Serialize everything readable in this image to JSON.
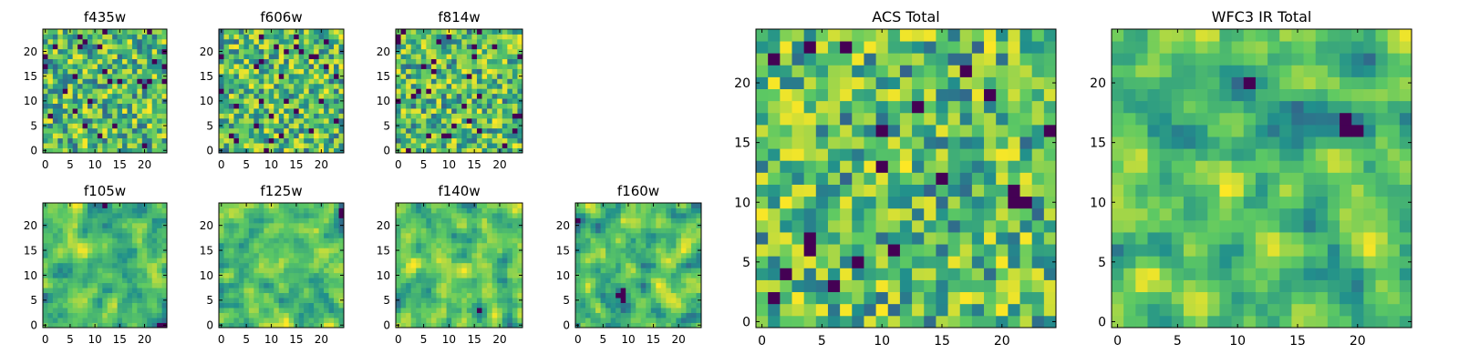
{
  "figure": {
    "colormap": "viridis",
    "grid_size": 25,
    "colormap_stops": [
      "#440154",
      "#3b528b",
      "#21908c",
      "#5dc963",
      "#fde725"
    ]
  },
  "chart_data": [
    {
      "type": "heatmap",
      "title": "f435w",
      "xticks": [
        "0",
        "5",
        "10",
        "15",
        "20"
      ],
      "yticks": [
        "0",
        "5",
        "10",
        "15",
        "20"
      ],
      "xlim": [
        -0.5,
        24.5
      ],
      "ylim": [
        -0.5,
        24.5
      ],
      "grid": false
    },
    {
      "type": "heatmap",
      "title": "f606w",
      "xticks": [
        "0",
        "5",
        "10",
        "15",
        "20"
      ],
      "yticks": [
        "0",
        "5",
        "10",
        "15",
        "20"
      ],
      "xlim": [
        -0.5,
        24.5
      ],
      "ylim": [
        -0.5,
        24.5
      ],
      "grid": false
    },
    {
      "type": "heatmap",
      "title": "f814w",
      "xticks": [
        "0",
        "5",
        "10",
        "15",
        "20"
      ],
      "yticks": [
        "0",
        "5",
        "10",
        "15",
        "20"
      ],
      "xlim": [
        -0.5,
        24.5
      ],
      "ylim": [
        -0.5,
        24.5
      ],
      "grid": false
    },
    {
      "type": "heatmap",
      "title": "f105w",
      "xticks": [
        "0",
        "5",
        "10",
        "15",
        "20"
      ],
      "yticks": [
        "0",
        "5",
        "10",
        "15",
        "20"
      ],
      "xlim": [
        -0.5,
        24.5
      ],
      "ylim": [
        -0.5,
        24.5
      ],
      "grid": false
    },
    {
      "type": "heatmap",
      "title": "f125w",
      "xticks": [
        "0",
        "5",
        "10",
        "15",
        "20"
      ],
      "yticks": [
        "0",
        "5",
        "10",
        "15",
        "20"
      ],
      "xlim": [
        -0.5,
        24.5
      ],
      "ylim": [
        -0.5,
        24.5
      ],
      "grid": false
    },
    {
      "type": "heatmap",
      "title": "f140w",
      "xticks": [
        "0",
        "5",
        "10",
        "15",
        "20"
      ],
      "yticks": [
        "0",
        "5",
        "10",
        "15",
        "20"
      ],
      "xlim": [
        -0.5,
        24.5
      ],
      "ylim": [
        -0.5,
        24.5
      ],
      "grid": false
    },
    {
      "type": "heatmap",
      "title": "f160w",
      "xticks": [
        "0",
        "5",
        "10",
        "15",
        "20"
      ],
      "yticks": [
        "0",
        "5",
        "10",
        "15",
        "20"
      ],
      "xlim": [
        -0.5,
        24.5
      ],
      "ylim": [
        -0.5,
        24.5
      ],
      "grid": false
    },
    {
      "type": "heatmap",
      "title": "ACS Total",
      "xticks": [
        "0",
        "5",
        "10",
        "15",
        "20"
      ],
      "yticks": [
        "0",
        "5",
        "10",
        "15",
        "20"
      ],
      "xlim": [
        -0.5,
        24.5
      ],
      "ylim": [
        -0.5,
        24.5
      ],
      "grid": false
    },
    {
      "type": "heatmap",
      "title": "WFC3 IR Total",
      "xticks": [
        "0",
        "5",
        "10",
        "15",
        "20"
      ],
      "yticks": [
        "0",
        "5",
        "10",
        "15",
        "20"
      ],
      "xlim": [
        -0.5,
        24.5
      ],
      "ylim": [
        -0.5,
        24.5
      ],
      "grid": false
    }
  ]
}
